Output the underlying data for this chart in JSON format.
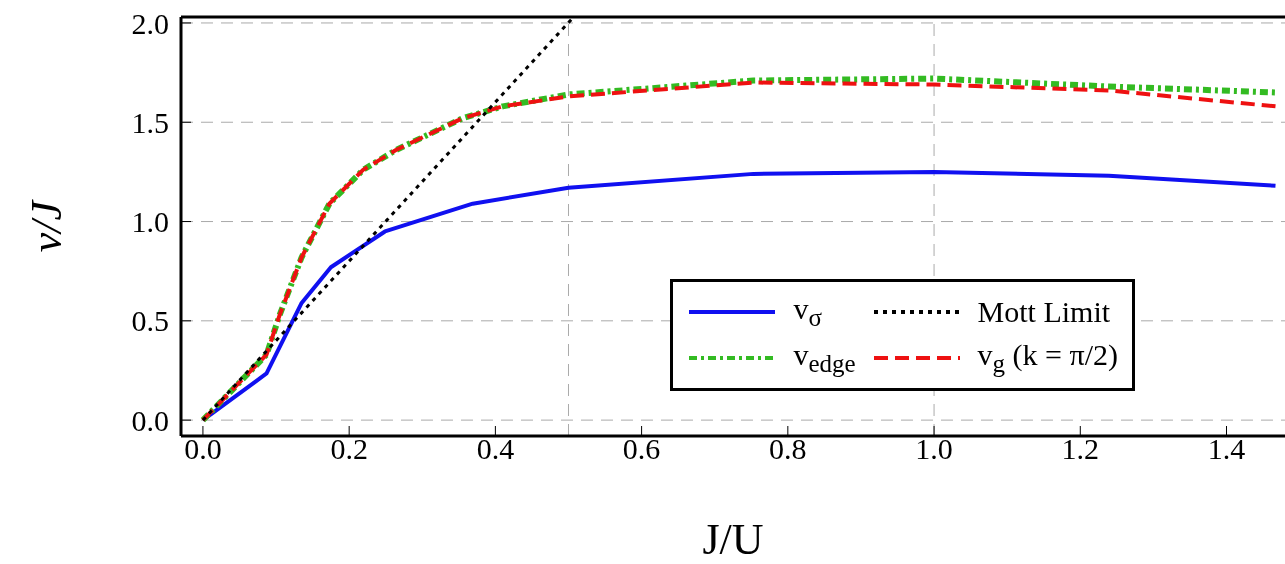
{
  "chart_data": {
    "type": "line",
    "xlabel": "J/U",
    "ylabel": "v/J",
    "xlim": [
      -0.03,
      1.48
    ],
    "xticks": [
      {
        "value": 0,
        "label": "0.0"
      },
      0.2,
      0.4,
      0.6,
      0.8,
      {
        "value": 1,
        "label": "1.0"
      },
      1.2,
      1.4
    ],
    "ylim": [
      -0.08,
      2.03
    ],
    "yticks": [
      {
        "value": 0,
        "label": "0.0"
      },
      0.5,
      {
        "value": 1,
        "label": "1.0"
      },
      1.5,
      {
        "value": 2,
        "label": "2.0"
      }
    ],
    "grid": "y",
    "legend": "bottom right",
    "marker": "none",
    "ref_lines": [
      {
        "axis": "x",
        "value": 0.5,
        "color": "#aaaaaa",
        "line_style": "dashed"
      },
      {
        "axis": "x",
        "value": 1.0,
        "color": "#aaaaaa",
        "line_style": "dashed"
      }
    ],
    "series": [
      {
        "name": "v$_{σ}$",
        "color": "#1010f0",
        "line_style": "solid",
        "x": [
          0,
          0.087,
          0.135,
          0.175,
          0.249,
          0.369,
          0.5,
          0.753,
          1.0,
          1.239,
          1.467
        ],
        "values": [
          0,
          0.235,
          0.59,
          0.77,
          0.95,
          1.09,
          1.17,
          1.24,
          1.25,
          1.23,
          1.18
        ]
      },
      {
        "name": "Mott Limit",
        "color": "#000000",
        "line_style": "dotted",
        "x": [
          0,
          0.507
        ],
        "values": [
          0,
          2.03
        ]
      },
      {
        "name": "v$_{edge}$",
        "color": "#33bb22",
        "line_style": "dashed",
        "x": [
          0,
          0.087,
          0.105,
          0.135,
          0.173,
          0.219,
          0.264,
          0.355,
          0.41,
          0.5,
          0.753,
          1.0,
          1.239,
          1.467
        ],
        "values": [
          0,
          0.33,
          0.53,
          0.82,
          1.09,
          1.26,
          1.36,
          1.52,
          1.58,
          1.64,
          1.71,
          1.72,
          1.68,
          1.65
        ]
      },
      {
        "name": "v$_{g}$ (k = π/2)",
        "color": "#ee1111",
        "line_style": "dashed",
        "x": [
          0,
          0.087,
          0.105,
          0.135,
          0.173,
          0.219,
          0.264,
          0.355,
          0.41,
          0.5,
          0.753,
          1.0,
          1.239,
          1.467
        ],
        "values": [
          0,
          0.33,
          0.53,
          0.82,
          1.09,
          1.26,
          1.36,
          1.52,
          1.58,
          1.63,
          1.7,
          1.69,
          1.66,
          1.58
        ]
      }
    ]
  }
}
